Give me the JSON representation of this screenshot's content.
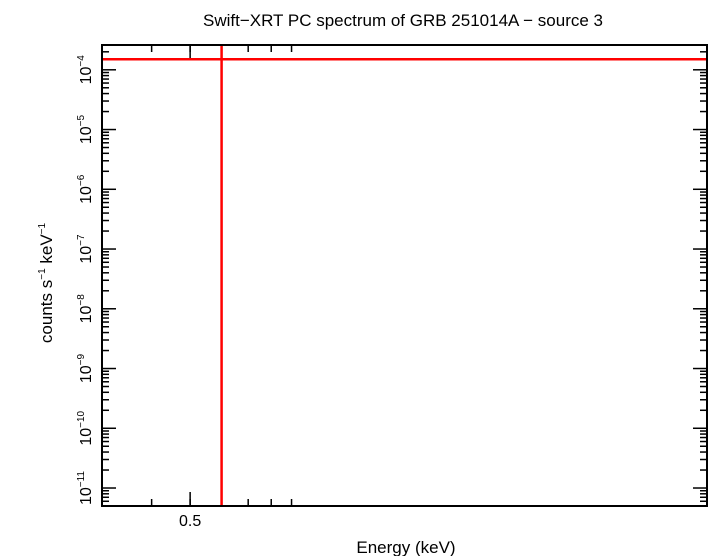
{
  "chart_data": {
    "type": "line",
    "title": "Swift−XRT PC spectrum of GRB 251014A − source 3",
    "xlabel": "Energy (keV)",
    "ylabel_base": "counts s",
    "ylabel_mid": " keV",
    "ylabel_exp": "−1",
    "x_scale": "log",
    "y_scale": "log",
    "xlim": [
      0.3,
      10
    ],
    "ylim": [
      5e-12,
      0.00026
    ],
    "x_tick_labels": [
      {
        "value": 0.5,
        "label": "0.5"
      }
    ],
    "x_minor_ticks": [
      0.4,
      0.5,
      0.6,
      0.7,
      0.8,
      0.9
    ],
    "y_ticks": [
      {
        "value": 0.0001,
        "base": "10",
        "exp": "−4"
      },
      {
        "value": 1e-05,
        "base": "10",
        "exp": "−5"
      },
      {
        "value": 1e-06,
        "base": "10",
        "exp": "−6"
      },
      {
        "value": 1e-07,
        "base": "10",
        "exp": "−7"
      },
      {
        "value": 1e-08,
        "base": "10",
        "exp": "−8"
      },
      {
        "value": 1e-09,
        "base": "10",
        "exp": "−9"
      },
      {
        "value": 1e-10,
        "base": "10",
        "exp": "−10"
      },
      {
        "value": 1e-11,
        "base": "10",
        "exp": "−11"
      }
    ],
    "series": [
      {
        "color": "#ff0000",
        "points": [
          {
            "x_low": 0.3,
            "x_high": 10,
            "x": 0.6,
            "y": 0.00015,
            "y_low": 5e-12,
            "y_high": 0.00026
          }
        ]
      }
    ],
    "colors": {
      "axes": "#000000",
      "data": "#ff0000"
    }
  }
}
